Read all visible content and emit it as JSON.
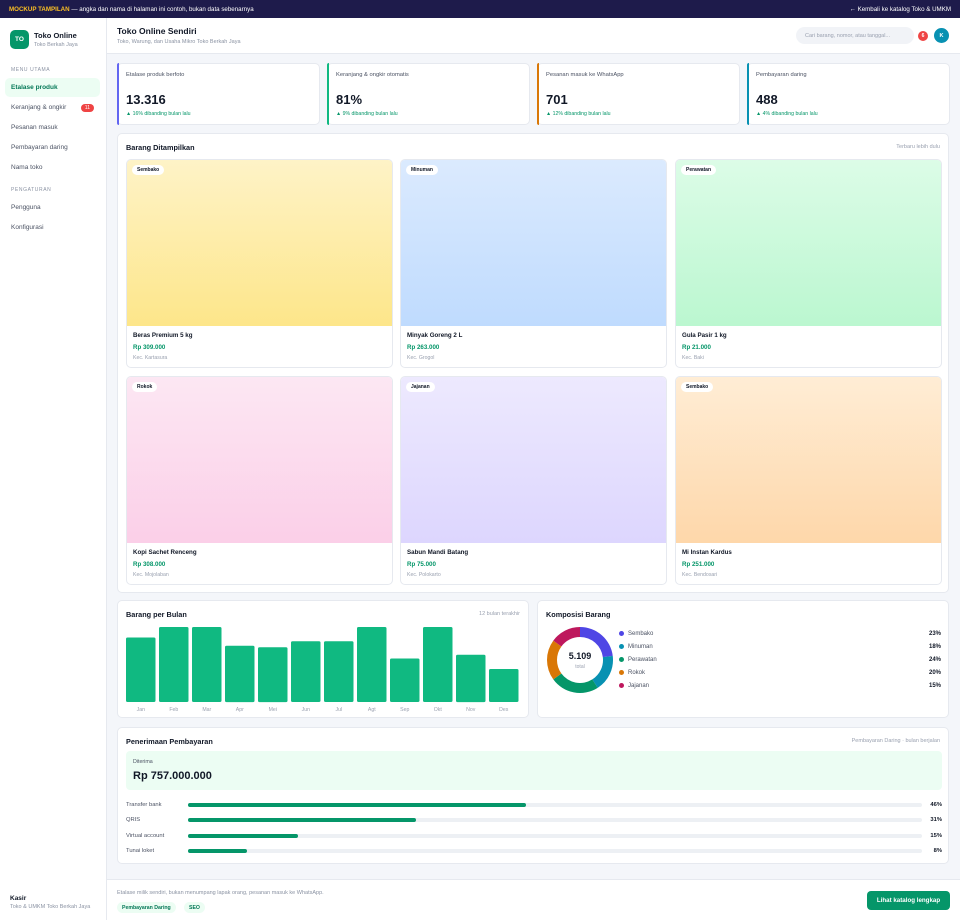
{
  "banner": {
    "tag": "MOCKUP TAMPILAN",
    "text": " — angka dan nama di halaman ini contoh, bukan data sebenarnya",
    "back_label": "← Kembali ke katalog Toko & UMKM"
  },
  "sidebar": {
    "brand_initials": "TO",
    "brand_name": "Toko Online",
    "brand_sub": "Toko Berkah Jaya",
    "section_main": "MENU UTAMA",
    "section_settings": "PENGATURAN",
    "items": [
      {
        "label": "Etalase produk",
        "active": true
      },
      {
        "label": "Keranjang & ongkir",
        "badge": "11"
      },
      {
        "label": "Pesanan masuk"
      },
      {
        "label": "Pembayaran daring"
      },
      {
        "label": "Nama toko"
      }
    ],
    "settings_items": [
      {
        "label": "Pengguna"
      },
      {
        "label": "Konfigurasi"
      }
    ],
    "footer_user": "Kasir",
    "footer_org": "Toko & UMKM Toko Berkah Jaya"
  },
  "header": {
    "title": "Toko Online Sendiri",
    "subtitle": "Toko, Warung, dan Usaha Mikro Toko Berkah Jaya",
    "search_placeholder": "Cari barang, nomor, atau tanggal...",
    "notification_count": "6",
    "avatar_initial": "K"
  },
  "stats": [
    {
      "label": "Etalase produk berfoto",
      "value": "13.316",
      "delta": "▲ 16% dibanding bulan lalu",
      "accent": "#6366f1"
    },
    {
      "label": "Keranjang & ongkir otomatis",
      "value": "81%",
      "delta": "▲ 9% dibanding bulan lalu",
      "accent": "#10b981"
    },
    {
      "label": "Pesanan masuk ke WhatsApp",
      "value": "701",
      "delta": "▲ 12% dibanding bulan lalu",
      "accent": "#d97706"
    },
    {
      "label": "Pembayaran daring",
      "value": "488",
      "delta": "▲ 4% dibanding bulan lalu",
      "accent": "#0891b2"
    }
  ],
  "products_section": {
    "title": "Barang Ditampilkan",
    "aside": "Terbaru lebih dulu"
  },
  "products": [
    {
      "tag": "Sembako",
      "name": "Beras Premium 5 kg",
      "price": "Rp 309.000",
      "location": "Kec. Kartasura",
      "color_top": "#fef3c7",
      "color_bottom": "#fde68a"
    },
    {
      "tag": "Minuman",
      "name": "Minyak Goreng 2 L",
      "price": "Rp 263.000",
      "location": "Kec. Grogol",
      "color_top": "#dbeafe",
      "color_bottom": "#bfdbfe"
    },
    {
      "tag": "Perawatan",
      "name": "Gula Pasir 1 kg",
      "price": "Rp 21.000",
      "location": "Kec. Baki",
      "color_top": "#dcfce7",
      "color_bottom": "#bbf7d0"
    },
    {
      "tag": "Rokok",
      "name": "Kopi Sachet Renceng",
      "price": "Rp 308.000",
      "location": "Kec. Mojolaban",
      "color_top": "#fce7f3",
      "color_bottom": "#fbcfe8"
    },
    {
      "tag": "Jajanan",
      "name": "Sabun Mandi Batang",
      "price": "Rp 75.000",
      "location": "Kec. Polokarto",
      "color_top": "#ede9fe",
      "color_bottom": "#ddd6fe"
    },
    {
      "tag": "Sembako",
      "name": "Mi Instan Kardus",
      "price": "Rp 251.000",
      "location": "Kec. Bendosari",
      "color_top": "#ffedd5",
      "color_bottom": "#fed7aa"
    }
  ],
  "bar_panel": {
    "title": "Barang per Bulan",
    "aside": "12 bulan terakhir"
  },
  "donut_panel": {
    "title": "Komposisi Barang",
    "center_value": "5.109",
    "center_label": "total"
  },
  "chart_data": [
    {
      "type": "bar",
      "categories": [
        "Jan",
        "Feb",
        "Mar",
        "Apr",
        "Mei",
        "Jun",
        "Jul",
        "Agt",
        "Sep",
        "Okt",
        "Nov",
        "Des"
      ],
      "values": [
        86,
        100,
        100,
        75,
        73,
        81,
        81,
        100,
        58,
        100,
        63,
        44
      ],
      "ylim": [
        0,
        100
      ],
      "color": "#10b981",
      "grid": false
    },
    {
      "type": "pie",
      "categories": [
        "Sembako",
        "Minuman",
        "Perawatan",
        "Rokok",
        "Jajanan"
      ],
      "values": [
        23,
        18,
        24,
        20,
        15
      ],
      "labels": [
        "23%",
        "18%",
        "24%",
        "20%",
        "15%"
      ],
      "colors": [
        "#4f46e5",
        "#0891b2",
        "#059669",
        "#d97706",
        "#be185d"
      ],
      "legend": "right"
    }
  ],
  "payments": {
    "title": "Penerimaan Pembayaran",
    "aside": "Pembayaran Daring · bulan berjalan",
    "received_label": "Diterima",
    "received_value": "Rp 757.000.000",
    "methods": [
      {
        "name": "Transfer bank",
        "percent": 46,
        "label": "46%"
      },
      {
        "name": "QRIS",
        "percent": 31,
        "label": "31%"
      },
      {
        "name": "Virtual account",
        "percent": 15,
        "label": "15%"
      },
      {
        "name": "Tunai loket",
        "percent": 8,
        "label": "8%"
      }
    ]
  },
  "footer": {
    "note": "Etalase milik sendiri, bukan menumpang lapak orang, pesanan masuk ke WhatsApp.",
    "chips": [
      "Pembayaran Daring",
      "SEO"
    ],
    "cta_label": "Lihat katalog lengkap"
  }
}
